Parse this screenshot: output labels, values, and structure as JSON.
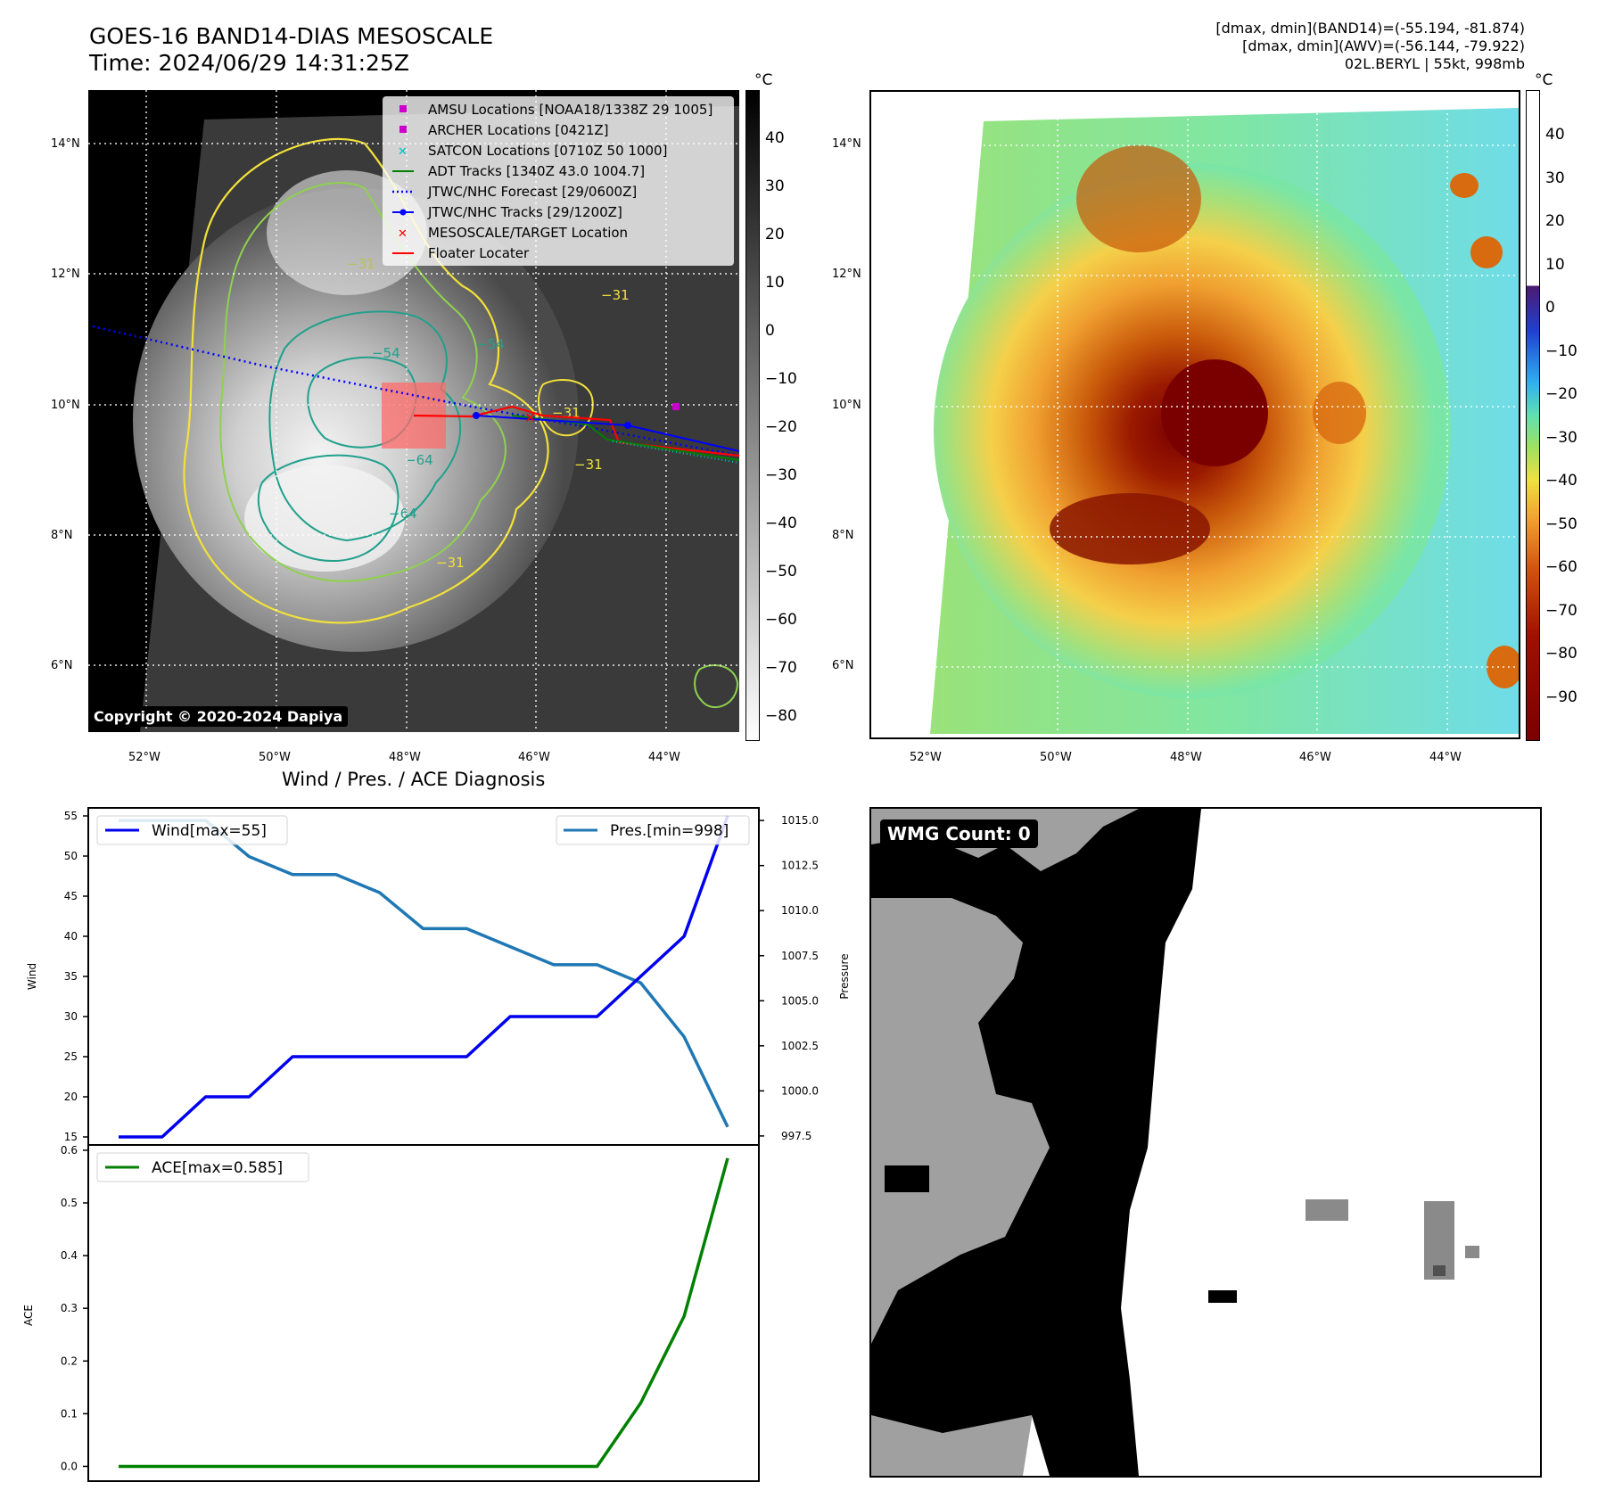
{
  "header": {
    "title_line1": "GOES-16 BAND14-DIAS MESOSCALE",
    "title_line2": "Time: 2024/06/29 14:31:25Z",
    "info_line1": "[dmax, dmin](BAND14)=(-55.194, -81.874)",
    "info_line2": "[dmax, dmin](AWV)=(-56.144, -79.922)",
    "info_line3": "02L.BERYL | 55kt, 998mb"
  },
  "colors": {
    "wind": "#0000ee",
    "pressure": "#1f77b4",
    "ace": "#008000",
    "contour_yellow": "#f2e13a",
    "contour_green": "#8fd14f",
    "contour_teal": "#21a08c",
    "forecast": "#0000ff",
    "floater": "#ff0000"
  },
  "map": {
    "lat_labels": [
      "14°N",
      "12°N",
      "10°N",
      "8°N",
      "6°N"
    ],
    "lon_labels": [
      "52°W",
      "50°W",
      "48°W",
      "46°W",
      "44°W"
    ],
    "unit": "°C",
    "left_colorbar_ticks": [
      "40",
      "30",
      "20",
      "10",
      "0",
      "−10",
      "−20",
      "−30",
      "−40",
      "−50",
      "−60",
      "−70",
      "−80"
    ],
    "right_colorbar_ticks": [
      "40",
      "30",
      "20",
      "10",
      "0",
      "−10",
      "−20",
      "−30",
      "−40",
      "−50",
      "−60",
      "−70",
      "−80",
      "−90"
    ],
    "contour_labels": [
      "−31",
      "−31",
      "−31",
      "−54",
      "−54",
      "−64",
      "−64",
      "−31",
      "−31"
    ],
    "legend": [
      {
        "label": "AMSU Locations [NOAA18/1338Z 29 1005]",
        "marker": "square",
        "color": "#cc00cc"
      },
      {
        "label": "ARCHER Locations [0421Z]",
        "marker": "square",
        "color": "#cc00cc"
      },
      {
        "label": "SATCON Locations [0710Z 50 1000]",
        "marker": "x",
        "color": "#00bfbf"
      },
      {
        "label": "ADT Tracks [1340Z 43.0 1004.7]",
        "marker": "line",
        "color": "#008000"
      },
      {
        "label": "JTWC/NHC Forecast [29/0600Z]",
        "marker": "dotted",
        "color": "#0000ff"
      },
      {
        "label": "JTWC/NHC Tracks [29/1200Z]",
        "marker": "line-dot",
        "color": "#0000ff"
      },
      {
        "label": "MESOSCALE/TARGET Location",
        "marker": "x",
        "color": "#ff0000"
      },
      {
        "label": "Floater Locater",
        "marker": "line",
        "color": "#ff0000"
      }
    ],
    "copyright": "Copyright © 2020-2024 Dapiya"
  },
  "diagnosis": {
    "title": "Wind / Pres. / ACE Diagnosis",
    "wind_legend": "Wind[max=55]",
    "pres_legend": "Pres.[min=998]",
    "ace_legend": "ACE[max=0.585]",
    "wind_axis_label": "Wind",
    "pres_axis_label": "Pressure",
    "ace_axis_label": "ACE",
    "wind_ticks": [
      "55",
      "50",
      "45",
      "40",
      "35",
      "30",
      "25",
      "20",
      "15"
    ],
    "pres_ticks": [
      "1015.0",
      "1012.5",
      "1010.0",
      "1007.5",
      "1005.0",
      "1002.5",
      "1000.0",
      "997.5"
    ],
    "ace_ticks": [
      "0.6",
      "0.5",
      "0.4",
      "0.3",
      "0.2",
      "0.1",
      "0.0"
    ]
  },
  "wmg": {
    "label": "WMG Count: 0"
  },
  "chart_data": [
    {
      "type": "line",
      "title": "Wind / Pres. / ACE Diagnosis",
      "xlabel": "",
      "ylabel": "Wind",
      "x": [
        0,
        1,
        2,
        3,
        4,
        5,
        6,
        7,
        8,
        9,
        10,
        11,
        12,
        13,
        14
      ],
      "series": [
        {
          "name": "Wind[max=55]",
          "axis": "left",
          "values": [
            15,
            15,
            20,
            20,
            25,
            25,
            25,
            25,
            25,
            30,
            30,
            30,
            35,
            40,
            55
          ]
        },
        {
          "name": "Pres.[min=998]",
          "axis": "right",
          "values": [
            1015,
            1015,
            1015,
            1013,
            1012,
            1012,
            1011,
            1009,
            1009,
            1008,
            1007,
            1007,
            1006,
            1003,
            998
          ]
        }
      ],
      "ylim": [
        14,
        56
      ],
      "ylim_right": [
        997,
        1015.7
      ],
      "ylabel_right": "Pressure",
      "grid": false,
      "legend": "top-left / top-right"
    },
    {
      "type": "line",
      "ylabel": "ACE",
      "x": [
        0,
        1,
        2,
        3,
        4,
        5,
        6,
        7,
        8,
        9,
        10,
        11,
        12,
        13,
        14
      ],
      "series": [
        {
          "name": "ACE[max=0.585]",
          "values": [
            0,
            0,
            0,
            0,
            0,
            0,
            0,
            0,
            0,
            0,
            0,
            0,
            0.12,
            0.285,
            0.585
          ]
        }
      ],
      "ylim": [
        -0.028,
        0.61
      ],
      "grid": false,
      "legend": "top-left"
    }
  ]
}
